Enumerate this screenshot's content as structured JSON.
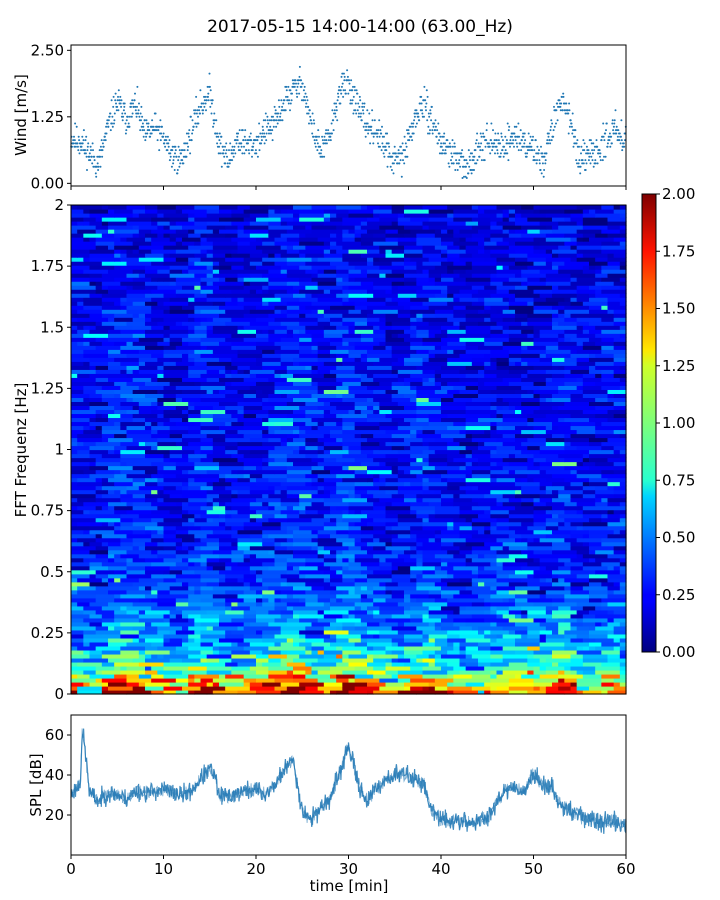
{
  "chart_data": [
    {
      "panel": "wind",
      "type": "scatter",
      "title": "2017-05-15 14:00-14:00 (63.00_Hz)",
      "ylabel": "Wind [m/s]",
      "xlim": [
        0,
        60
      ],
      "ylim": [
        -0.05,
        2.6
      ],
      "yticks": [
        0.0,
        1.25,
        2.5
      ],
      "ytick_labels": [
        "0.00",
        "1.25",
        "2.50"
      ],
      "color": "#1f77b4",
      "x": [
        0,
        1,
        2,
        3,
        4,
        5,
        6,
        7,
        8,
        9,
        10,
        11,
        12,
        13,
        14,
        15,
        16,
        17,
        18,
        19,
        20,
        21,
        22,
        23,
        24,
        25,
        26,
        27,
        28,
        29,
        30,
        31,
        32,
        33,
        34,
        35,
        36,
        37,
        38,
        39,
        40,
        41,
        42,
        43,
        44,
        45,
        46,
        47,
        48,
        49,
        50,
        51,
        52,
        53,
        54,
        55,
        56,
        57,
        58,
        59,
        60
      ],
      "y": [
        0.85,
        0.8,
        0.55,
        0.35,
        1.05,
        1.55,
        1.2,
        1.5,
        0.9,
        1.05,
        0.85,
        0.5,
        0.45,
        1.0,
        1.45,
        1.7,
        0.75,
        0.4,
        0.85,
        0.7,
        0.75,
        1.0,
        1.1,
        1.5,
        1.75,
        1.9,
        1.1,
        0.6,
        0.9,
        1.7,
        1.9,
        1.4,
        1.1,
        1.0,
        0.65,
        0.4,
        0.55,
        1.1,
        1.5,
        1.2,
        0.75,
        0.6,
        0.4,
        0.25,
        0.75,
        0.8,
        0.7,
        0.75,
        0.9,
        0.75,
        0.65,
        0.4,
        1.0,
        1.6,
        1.25,
        0.35,
        0.5,
        0.6,
        0.9,
        1.0,
        0.85
      ]
    },
    {
      "panel": "spectrogram",
      "type": "heatmap",
      "ylabel": "FFT Frequenz [Hz]",
      "xlim": [
        0,
        60
      ],
      "ylim": [
        0,
        2
      ],
      "yticks": [
        0,
        0.25,
        0.5,
        0.75,
        1,
        1.25,
        1.5,
        1.75,
        2
      ],
      "ytick_labels": [
        "0",
        "0.25",
        "0.5",
        "0.75",
        "1",
        "1.25",
        "1.5",
        "1.75",
        "2"
      ],
      "colormap": "jet",
      "clim": [
        0.0,
        2.0
      ],
      "colorbar_ticks": [
        "0.00",
        "0.25",
        "0.50",
        "0.75",
        "1.00",
        "1.25",
        "1.50",
        "1.75",
        "2.00"
      ],
      "level_by_frequency": {
        "freq": [
          0,
          0.05,
          0.1,
          0.2,
          0.3,
          0.5,
          0.75,
          1.0,
          1.5,
          2.0
        ],
        "value": [
          1.95,
          1.6,
          1.0,
          0.7,
          0.5,
          0.35,
          0.3,
          0.3,
          0.28,
          0.22
        ]
      }
    },
    {
      "panel": "spl",
      "type": "line",
      "xlabel": "time [min]",
      "ylabel": "SPL [dB]",
      "xlim": [
        0,
        60
      ],
      "ylim": [
        0,
        70
      ],
      "xticks": [
        0,
        10,
        20,
        30,
        40,
        50,
        60
      ],
      "xtick_labels": [
        "0",
        "10",
        "20",
        "30",
        "40",
        "50",
        "60"
      ],
      "yticks": [
        20,
        40,
        60
      ],
      "ytick_labels": [
        "20",
        "40",
        "60"
      ],
      "color": "#1f77b4",
      "x": [
        0,
        1,
        1.2,
        1.4,
        2,
        3,
        4,
        5,
        6,
        7,
        8,
        9,
        10,
        11,
        12,
        13,
        14,
        15,
        15.5,
        16,
        17,
        18,
        19,
        20,
        21,
        22,
        23,
        24,
        25,
        26,
        27,
        28,
        29,
        30,
        31,
        32,
        33,
        34,
        35,
        36,
        37,
        38,
        39,
        40,
        41,
        42,
        43,
        44,
        45,
        46,
        47,
        48,
        49,
        50,
        51,
        52,
        53,
        54,
        55,
        56,
        57,
        58,
        59,
        60
      ],
      "y": [
        30,
        36,
        60,
        58,
        31,
        27,
        31,
        30,
        28,
        32,
        31,
        32,
        33,
        31,
        30,
        32,
        38,
        43,
        40,
        30,
        29,
        31,
        32,
        33,
        30,
        35,
        42,
        48,
        22,
        18,
        24,
        28,
        40,
        55,
        36,
        27,
        33,
        38,
        40,
        41,
        38,
        37,
        22,
        18,
        17,
        17,
        16,
        17,
        18,
        27,
        33,
        34,
        32,
        40,
        36,
        33,
        25,
        22,
        20,
        18,
        16,
        17,
        16,
        15
      ]
    }
  ]
}
